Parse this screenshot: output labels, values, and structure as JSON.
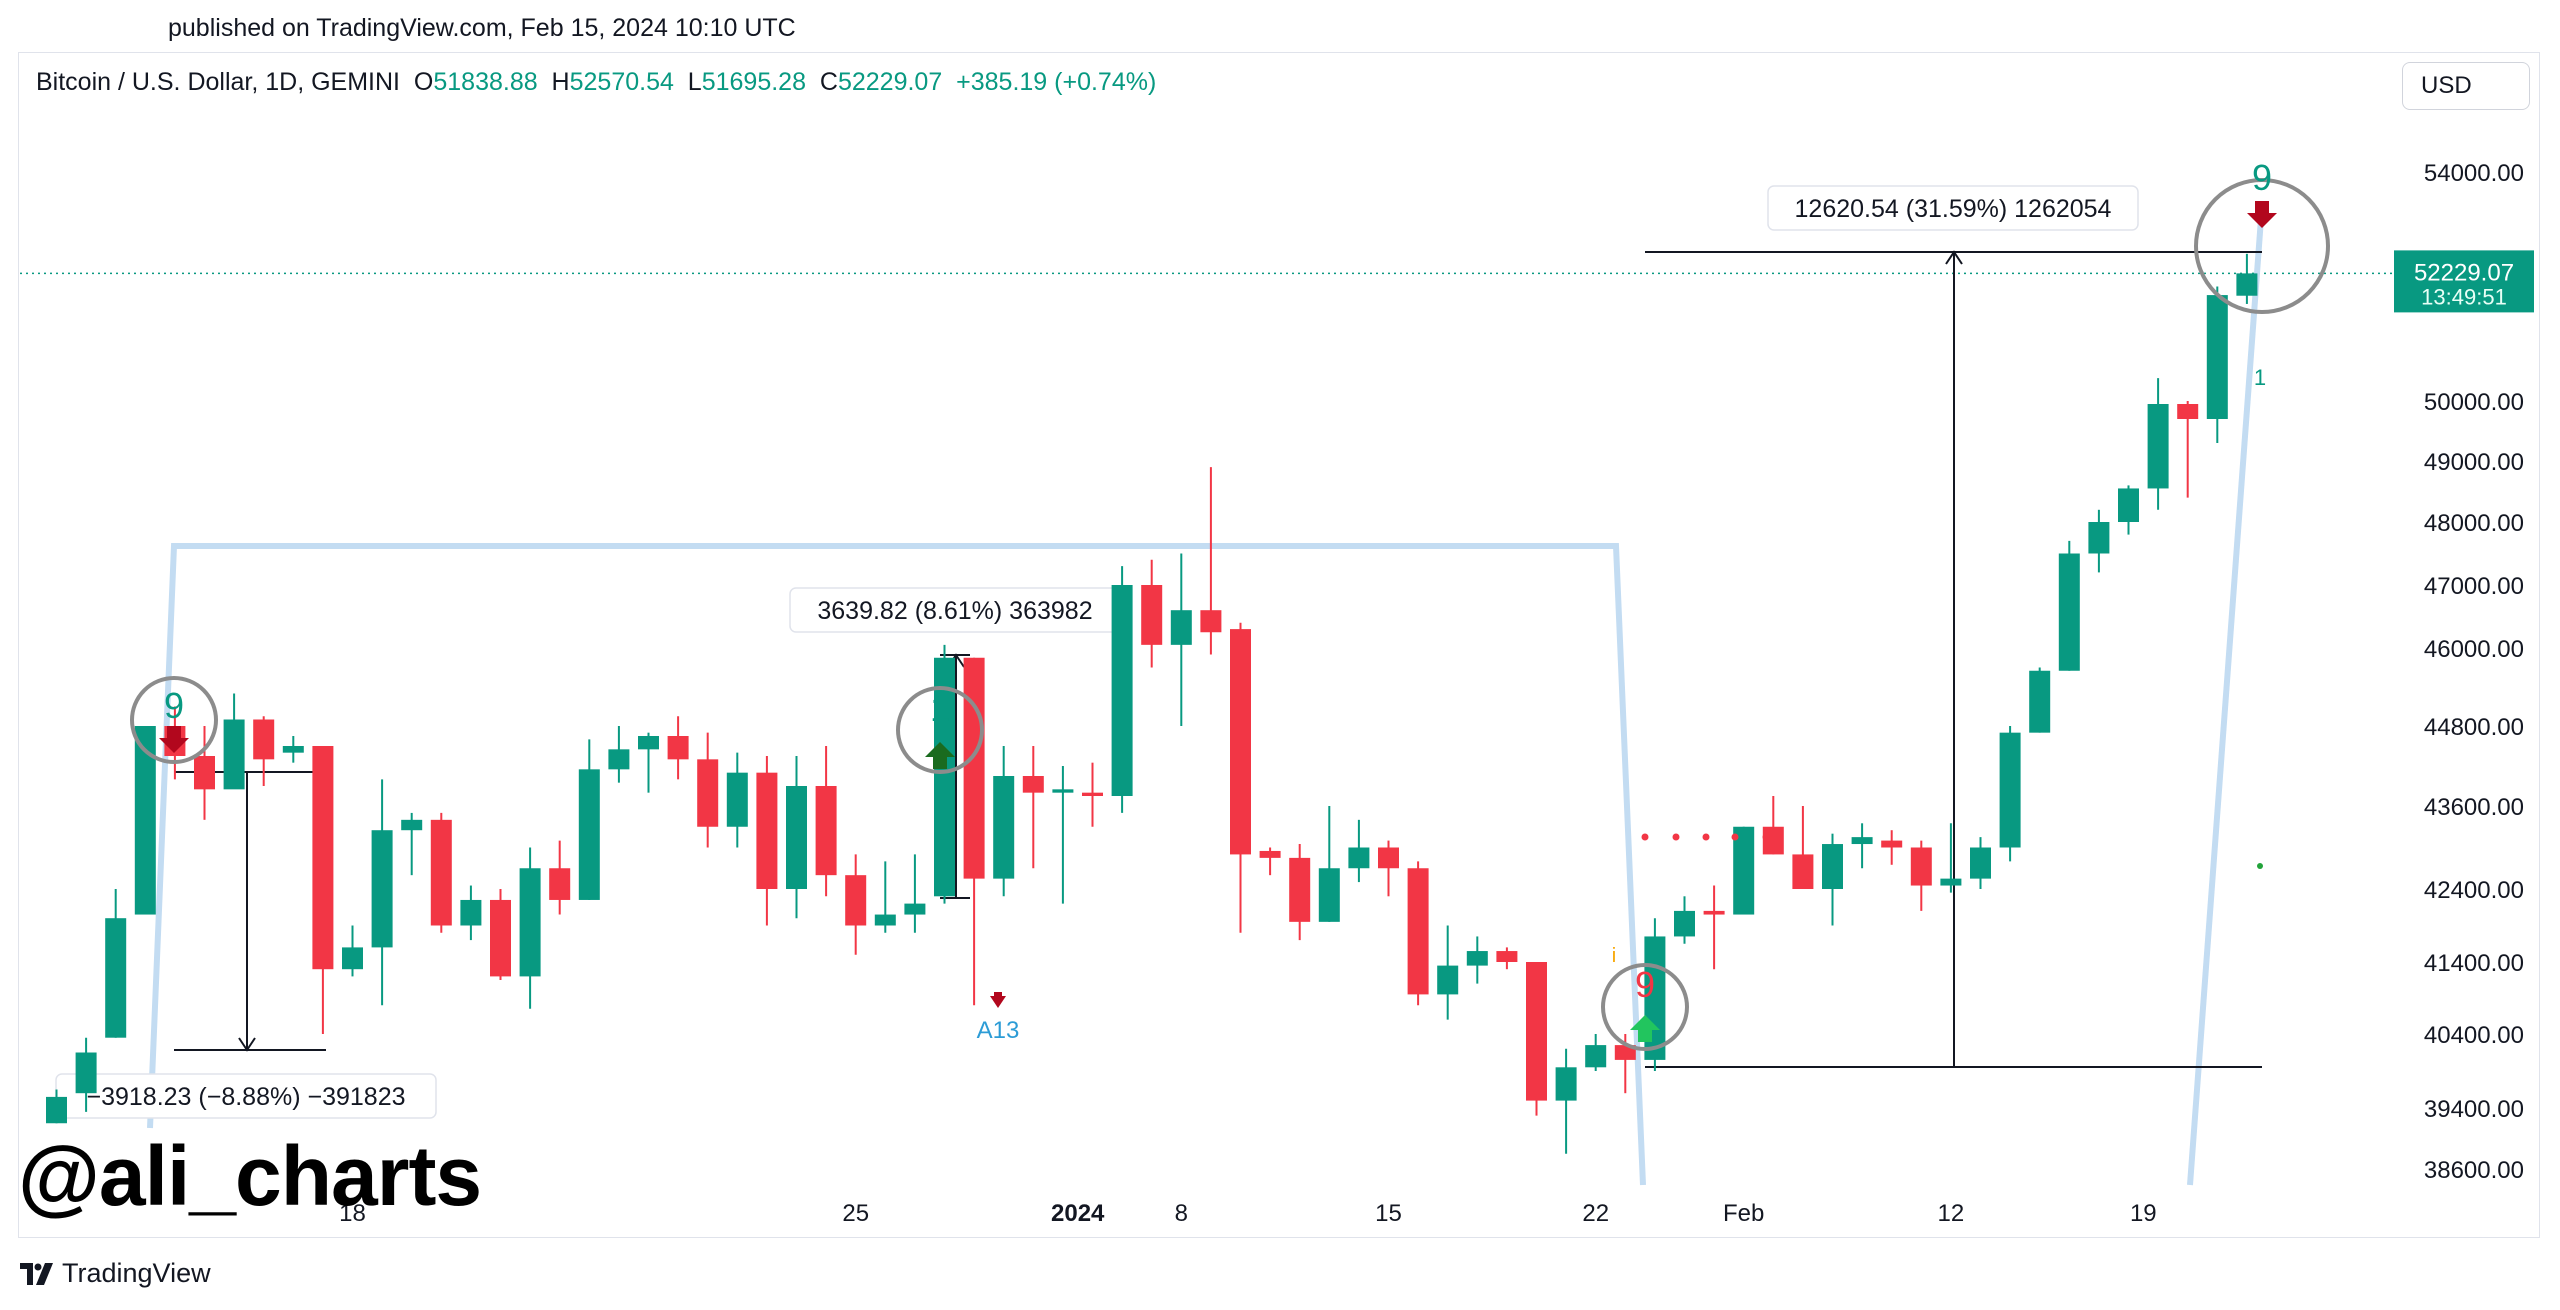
{
  "published": "published on TradingView.com, Feb 15, 2024 10:10 UTC",
  "legend": {
    "symbol": "Bitcoin / U.S. Dollar, 1D, GEMINI",
    "o_label": "O",
    "o": "51838.88",
    "h_label": "H",
    "h": "52570.54",
    "l_label": "L",
    "l": "51695.28",
    "c_label": "C",
    "c": "52229.07",
    "change": "+385.19 (+0.74%)"
  },
  "currency": "USD",
  "watermark": "@ali_charts",
  "brand": "TradingView",
  "colors": {
    "up": "#089981",
    "down": "#f23645",
    "guide": "#c3dcf2",
    "dark": "#131722"
  },
  "chart_data": {
    "type": "candlestick",
    "price_tag": {
      "price": "52229.07",
      "countdown": "13:49:51"
    },
    "y_ticks": [
      "54000.00",
      "50000.00",
      "49000.00",
      "48000.00",
      "47000.00",
      "46000.00",
      "44800.00",
      "43600.00",
      "42400.00",
      "41400.00",
      "40400.00",
      "39400.00",
      "38600.00"
    ],
    "x_ticks": [
      {
        "label": "18",
        "bold": false
      },
      {
        "label": "25",
        "bold": false
      },
      {
        "label": "2024",
        "bold": true
      },
      {
        "label": "8",
        "bold": false
      },
      {
        "label": "15",
        "bold": false
      },
      {
        "label": "22",
        "bold": false
      },
      {
        "label": "Feb",
        "bold": false
      },
      {
        "label": "12",
        "bold": false
      },
      {
        "label": "19",
        "bold": false
      }
    ],
    "candles": [
      {
        "o": 39200,
        "h": 39650,
        "l": 39200,
        "c": 39550
      },
      {
        "o": 39600,
        "h": 40350,
        "l": 39350,
        "c": 40150
      },
      {
        "o": 40350,
        "h": 42400,
        "l": 40350,
        "c": 42000
      },
      {
        "o": 42050,
        "h": 44800,
        "l": 42050,
        "c": 44800
      },
      {
        "o": 44800,
        "h": 45100,
        "l": 44000,
        "c": 44350
      },
      {
        "o": 44350,
        "h": 44800,
        "l": 43400,
        "c": 43850
      },
      {
        "o": 43850,
        "h": 45300,
        "l": 43900,
        "c": 44900
      },
      {
        "o": 44900,
        "h": 44950,
        "l": 43900,
        "c": 44300
      },
      {
        "o": 44400,
        "h": 44650,
        "l": 44250,
        "c": 44500
      },
      {
        "o": 44500,
        "h": 44500,
        "l": 40400,
        "c": 41300
      },
      {
        "o": 41300,
        "h": 41900,
        "l": 41200,
        "c": 41600
      },
      {
        "o": 41600,
        "h": 44000,
        "l": 40800,
        "c": 43250
      },
      {
        "o": 43250,
        "h": 43500,
        "l": 42600,
        "c": 43400
      },
      {
        "o": 43400,
        "h": 43500,
        "l": 41800,
        "c": 41900
      },
      {
        "o": 41900,
        "h": 42450,
        "l": 41700,
        "c": 42250
      },
      {
        "o": 42250,
        "h": 42400,
        "l": 41150,
        "c": 41200
      },
      {
        "o": 41200,
        "h": 43000,
        "l": 40750,
        "c": 42700
      },
      {
        "o": 42700,
        "h": 43100,
        "l": 42050,
        "c": 42250
      },
      {
        "o": 42250,
        "h": 44600,
        "l": 42250,
        "c": 44150
      },
      {
        "o": 44150,
        "h": 44800,
        "l": 43950,
        "c": 44450
      },
      {
        "o": 44450,
        "h": 44700,
        "l": 43800,
        "c": 44650
      },
      {
        "o": 44650,
        "h": 44950,
        "l": 44000,
        "c": 44300
      },
      {
        "o": 44300,
        "h": 44700,
        "l": 43000,
        "c": 43300
      },
      {
        "o": 43300,
        "h": 44400,
        "l": 43000,
        "c": 44100
      },
      {
        "o": 44100,
        "h": 44350,
        "l": 41900,
        "c": 42400
      },
      {
        "o": 42400,
        "h": 44350,
        "l": 42000,
        "c": 43900
      },
      {
        "o": 43900,
        "h": 44500,
        "l": 42300,
        "c": 42600
      },
      {
        "o": 42600,
        "h": 42900,
        "l": 41500,
        "c": 41900
      },
      {
        "o": 41900,
        "h": 42800,
        "l": 41800,
        "c": 42050
      },
      {
        "o": 42050,
        "h": 42900,
        "l": 41800,
        "c": 42200
      },
      {
        "o": 42300,
        "h": 46050,
        "l": 42200,
        "c": 45850
      },
      {
        "o": 45850,
        "h": 45850,
        "l": 40800,
        "c": 42550
      },
      {
        "o": 42550,
        "h": 44500,
        "l": 42300,
        "c": 44050
      },
      {
        "o": 44050,
        "h": 44500,
        "l": 42700,
        "c": 43800
      },
      {
        "o": 43800,
        "h": 44200,
        "l": 42200,
        "c": 43850
      },
      {
        "o": 43800,
        "h": 44250,
        "l": 43300,
        "c": 43750
      },
      {
        "o": 43750,
        "h": 47300,
        "l": 43500,
        "c": 47000
      },
      {
        "o": 47000,
        "h": 47400,
        "l": 45700,
        "c": 46050
      },
      {
        "o": 46050,
        "h": 47500,
        "l": 44800,
        "c": 46600
      },
      {
        "o": 46600,
        "h": 48900,
        "l": 45900,
        "c": 46250
      },
      {
        "o": 46300,
        "h": 46400,
        "l": 41800,
        "c": 42900
      },
      {
        "o": 42950,
        "h": 43000,
        "l": 42600,
        "c": 42850
      },
      {
        "o": 42850,
        "h": 43050,
        "l": 41700,
        "c": 41950
      },
      {
        "o": 41950,
        "h": 43600,
        "l": 41950,
        "c": 42700
      },
      {
        "o": 42700,
        "h": 43400,
        "l": 42500,
        "c": 43000
      },
      {
        "o": 43000,
        "h": 43100,
        "l": 42300,
        "c": 42700
      },
      {
        "o": 42700,
        "h": 42800,
        "l": 40800,
        "c": 40950
      },
      {
        "o": 40950,
        "h": 41900,
        "l": 40600,
        "c": 41350
      },
      {
        "o": 41350,
        "h": 41750,
        "l": 41100,
        "c": 41550
      },
      {
        "o": 41550,
        "h": 41600,
        "l": 41300,
        "c": 41400
      },
      {
        "o": 41400,
        "h": 41400,
        "l": 39300,
        "c": 39500
      },
      {
        "o": 39500,
        "h": 40200,
        "l": 38800,
        "c": 39950
      },
      {
        "o": 39950,
        "h": 40400,
        "l": 39900,
        "c": 40250
      },
      {
        "o": 40250,
        "h": 40400,
        "l": 39600,
        "c": 40050
      },
      {
        "o": 40050,
        "h": 42000,
        "l": 39900,
        "c": 41750
      },
      {
        "o": 41750,
        "h": 42300,
        "l": 41650,
        "c": 42100
      },
      {
        "o": 42100,
        "h": 42450,
        "l": 41300,
        "c": 42050
      },
      {
        "o": 42050,
        "h": 43300,
        "l": 42050,
        "c": 43300
      },
      {
        "o": 43300,
        "h": 43750,
        "l": 42900,
        "c": 42900
      },
      {
        "o": 42900,
        "h": 43600,
        "l": 42400,
        "c": 42400
      },
      {
        "o": 42400,
        "h": 43200,
        "l": 41900,
        "c": 43050
      },
      {
        "o": 43050,
        "h": 43350,
        "l": 42700,
        "c": 43150
      },
      {
        "o": 43100,
        "h": 43250,
        "l": 42750,
        "c": 43000
      },
      {
        "o": 43000,
        "h": 43100,
        "l": 42100,
        "c": 42450
      },
      {
        "o": 42450,
        "h": 43350,
        "l": 42350,
        "c": 42550
      },
      {
        "o": 42550,
        "h": 43150,
        "l": 42400,
        "c": 43000
      },
      {
        "o": 43000,
        "h": 44800,
        "l": 42800,
        "c": 44700
      },
      {
        "o": 44700,
        "h": 45700,
        "l": 44700,
        "c": 45650
      },
      {
        "o": 45650,
        "h": 47700,
        "l": 45650,
        "c": 47500
      },
      {
        "o": 47500,
        "h": 48200,
        "l": 47200,
        "c": 48000
      },
      {
        "o": 48000,
        "h": 48600,
        "l": 47800,
        "c": 48550
      },
      {
        "o": 48550,
        "h": 50400,
        "l": 48200,
        "c": 49950
      },
      {
        "o": 49950,
        "h": 50000,
        "l": 48400,
        "c": 49700
      },
      {
        "o": 49700,
        "h": 52000,
        "l": 49300,
        "c": 51850
      },
      {
        "o": 51838.88,
        "h": 52570.54,
        "l": 51695.28,
        "c": 52229.07
      }
    ],
    "measurements": [
      {
        "label": "3639.82 (8.61%) 363982"
      },
      {
        "label": "12620.54 (31.59%) 1262054"
      },
      {
        "label": "−3918.23 (−8.88%) −391823"
      }
    ],
    "td_signals": [
      {
        "number": "9",
        "direction": "down",
        "color": "#089981"
      },
      {
        "number": "1",
        "direction": "up",
        "color": "#089981"
      },
      {
        "number": "9",
        "direction": "up",
        "color": "#f23645"
      },
      {
        "number": "9",
        "direction": "down",
        "color": "#089981"
      }
    ],
    "annotations": [
      "A13",
      "1",
      "i"
    ]
  }
}
